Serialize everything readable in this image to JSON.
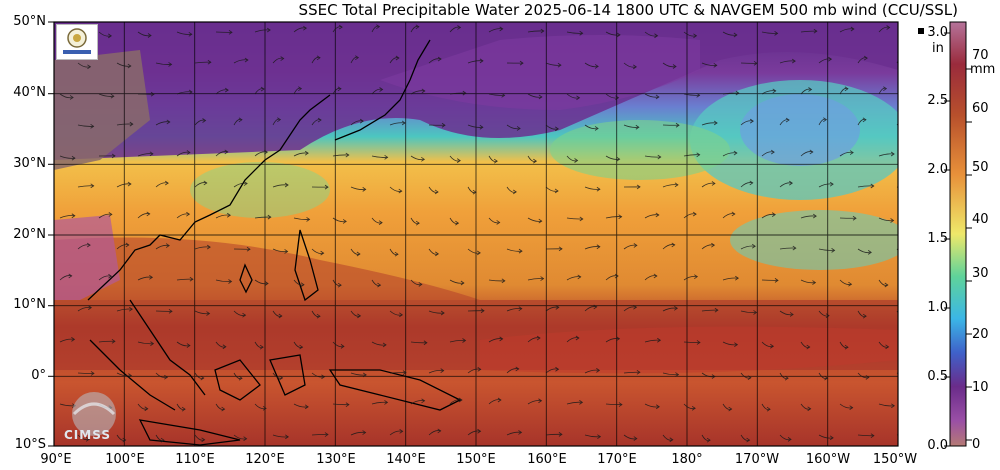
{
  "title": "SSEC Total Precipitable Water  2025-06-14 1800 UTC & NAVGEM 500 mb wind (CCU/SSL)",
  "map": {
    "lat_labels": [
      "50°N",
      "40°N",
      "30°N",
      "20°N",
      "10°N",
      "0°",
      "10°S"
    ],
    "lon_labels": [
      "90°E",
      "100°E",
      "110°E",
      "120°E",
      "130°E",
      "140°E",
      "150°E",
      "160°E",
      "170°E",
      "180°",
      "170°W",
      "160°W",
      "150°W"
    ]
  },
  "colorbar": {
    "inch_ticks": [
      "3.0",
      "2.5",
      "2.0",
      "1.5",
      "1.0",
      "0.5",
      "0.0"
    ],
    "inch_unit": "in",
    "mm_ticks": [
      "70",
      "60",
      "50",
      "40",
      "30",
      "20",
      "10",
      "0"
    ],
    "mm_unit": "mm"
  },
  "logos": {
    "cimss": "CIMSS"
  },
  "colors": {
    "moist": "#b3402a",
    "mid": "#f2a13a",
    "dry": "#6a2c8a",
    "land": "#8a6a6a"
  }
}
